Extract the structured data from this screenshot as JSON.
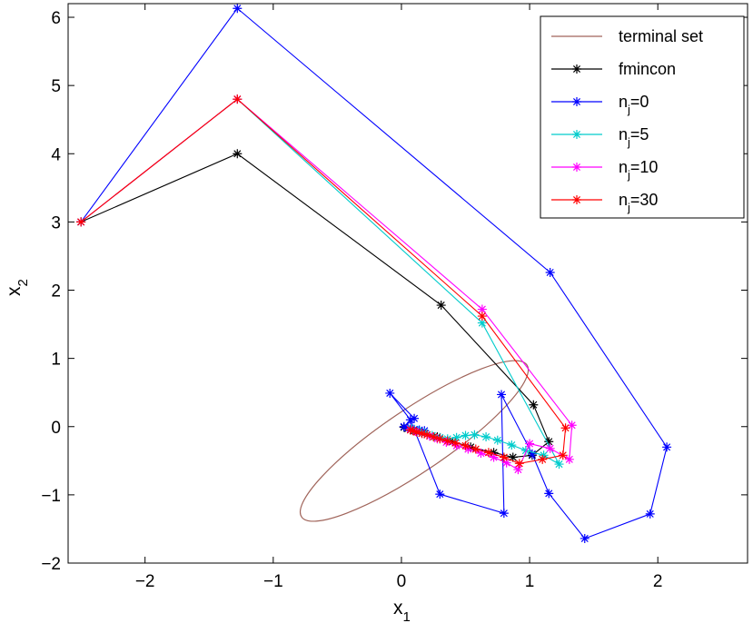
{
  "chart_data": {
    "type": "line",
    "title": "",
    "xlabel": "x",
    "xlabel_sub": "1",
    "ylabel": "x",
    "ylabel_sub": "2",
    "xlim": [
      -2.6,
      2.7
    ],
    "ylim": [
      -2,
      6.2
    ],
    "xticks": [
      -2,
      -1,
      0,
      1,
      2
    ],
    "yticks": [
      -2,
      -1,
      0,
      1,
      2,
      3,
      4,
      5,
      6
    ],
    "grid": false,
    "legend_position": "top-right",
    "terminal_set": {
      "name": "terminal set",
      "color": "#a0645a",
      "center": [
        0.1,
        -0.21
      ],
      "semi_major": 1.06,
      "semi_minor": 0.46,
      "angle_deg": -34
    },
    "series": [
      {
        "name": "fmincon",
        "label_main": "fmincon",
        "label_sub": "",
        "label_rest": "",
        "color": "#000000",
        "x": [
          -2.5,
          -1.28,
          0.31,
          1.03,
          1.15,
          1.02,
          0.87,
          0.72,
          0.54,
          0.4,
          0.28,
          0.18,
          0.1,
          0.05,
          0.02
        ],
        "y": [
          3.0,
          4.0,
          1.78,
          0.32,
          -0.22,
          -0.42,
          -0.45,
          -0.38,
          -0.3,
          -0.22,
          -0.15,
          -0.1,
          -0.06,
          -0.03,
          -0.01
        ]
      },
      {
        "name": "n_j=0",
        "label_main": "n",
        "label_sub": "j",
        "label_rest": "=0",
        "color": "#0000ff",
        "x": [
          -2.5,
          -1.28,
          1.16,
          2.07,
          1.94,
          1.43,
          1.15,
          1.02,
          0.78,
          0.8,
          0.3,
          0.07,
          -0.09,
          0.1,
          0.02,
          0.05,
          0.1,
          0.14,
          0.18
        ],
        "y": [
          3.0,
          6.13,
          2.26,
          -0.3,
          -1.28,
          -1.64,
          -0.98,
          -0.4,
          0.47,
          -1.27,
          -0.99,
          0.1,
          0.49,
          0.12,
          0.0,
          -0.02,
          -0.04,
          -0.05,
          -0.06
        ]
      },
      {
        "name": "n_j=5",
        "label_main": "n",
        "label_sub": "j",
        "label_rest": "=5",
        "color": "#00cccc",
        "x": [
          -2.5,
          -1.28,
          0.63,
          1.23,
          1.11,
          0.97,
          0.86,
          0.75,
          0.66,
          0.57,
          0.5,
          0.43,
          0.36,
          0.3,
          0.24,
          0.18,
          0.13,
          0.08
        ],
        "y": [
          3.0,
          4.8,
          1.52,
          -0.55,
          -0.42,
          -0.35,
          -0.27,
          -0.2,
          -0.15,
          -0.12,
          -0.13,
          -0.16,
          -0.18,
          -0.16,
          -0.13,
          -0.09,
          -0.06,
          -0.03
        ]
      },
      {
        "name": "n_j=10",
        "label_main": "n",
        "label_sub": "j",
        "label_rest": "=10",
        "color": "#ff00ff",
        "x": [
          -2.5,
          -1.28,
          0.63,
          1.33,
          1.31,
          1.16,
          1.0,
          0.91,
          0.82,
          0.72,
          0.62,
          0.52,
          0.43,
          0.35,
          0.28,
          0.22,
          0.16,
          0.11,
          0.07
        ],
        "y": [
          3.0,
          4.8,
          1.72,
          0.02,
          -0.48,
          -0.32,
          -0.25,
          -0.63,
          -0.53,
          -0.45,
          -0.39,
          -0.33,
          -0.28,
          -0.23,
          -0.18,
          -0.14,
          -0.1,
          -0.07,
          -0.04
        ]
      },
      {
        "name": "n_j=30",
        "label_main": "n",
        "label_sub": "j",
        "label_rest": "=30",
        "color": "#ff0000",
        "x": [
          -2.5,
          -1.28,
          0.63,
          1.28,
          1.26,
          1.1,
          0.92,
          0.8,
          0.68,
          0.58,
          0.5,
          0.42,
          0.36,
          0.3,
          0.25,
          0.2,
          0.16,
          0.12,
          0.09,
          0.07
        ],
        "y": [
          3.0,
          4.8,
          1.62,
          -0.02,
          -0.42,
          -0.48,
          -0.54,
          -0.45,
          -0.38,
          -0.33,
          -0.28,
          -0.24,
          -0.21,
          -0.18,
          -0.15,
          -0.12,
          -0.1,
          -0.08,
          -0.06,
          -0.05
        ]
      }
    ]
  }
}
